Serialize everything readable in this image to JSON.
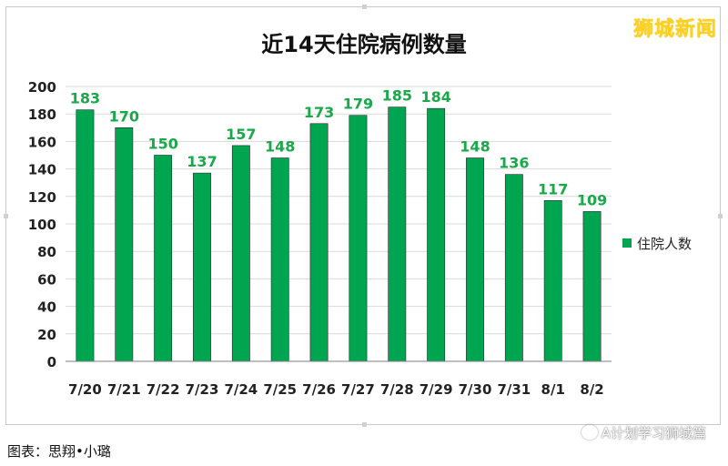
{
  "brand": "狮城新闻",
  "credit": "图表：思翔•小璐",
  "watermark": "A计划学习狮城篇",
  "colors": {
    "bar": "#00a550",
    "label": "#1aa84a",
    "grid": "#d9d9d9"
  },
  "chart_data": {
    "type": "bar",
    "title": "近14天住院病例数量",
    "categories": [
      "7/20",
      "7/21",
      "7/22",
      "7/23",
      "7/24",
      "7/25",
      "7/26",
      "7/27",
      "7/28",
      "7/29",
      "7/30",
      "7/31",
      "8/1",
      "8/2"
    ],
    "series": [
      {
        "name": "住院人数",
        "values": [
          183,
          170,
          150,
          137,
          157,
          148,
          173,
          179,
          185,
          184,
          148,
          136,
          117,
          109
        ]
      }
    ],
    "ylim": [
      0,
      200
    ],
    "yticks": [
      0,
      20,
      40,
      60,
      80,
      100,
      120,
      140,
      160,
      180,
      200
    ],
    "grid": true,
    "legend": "right"
  }
}
